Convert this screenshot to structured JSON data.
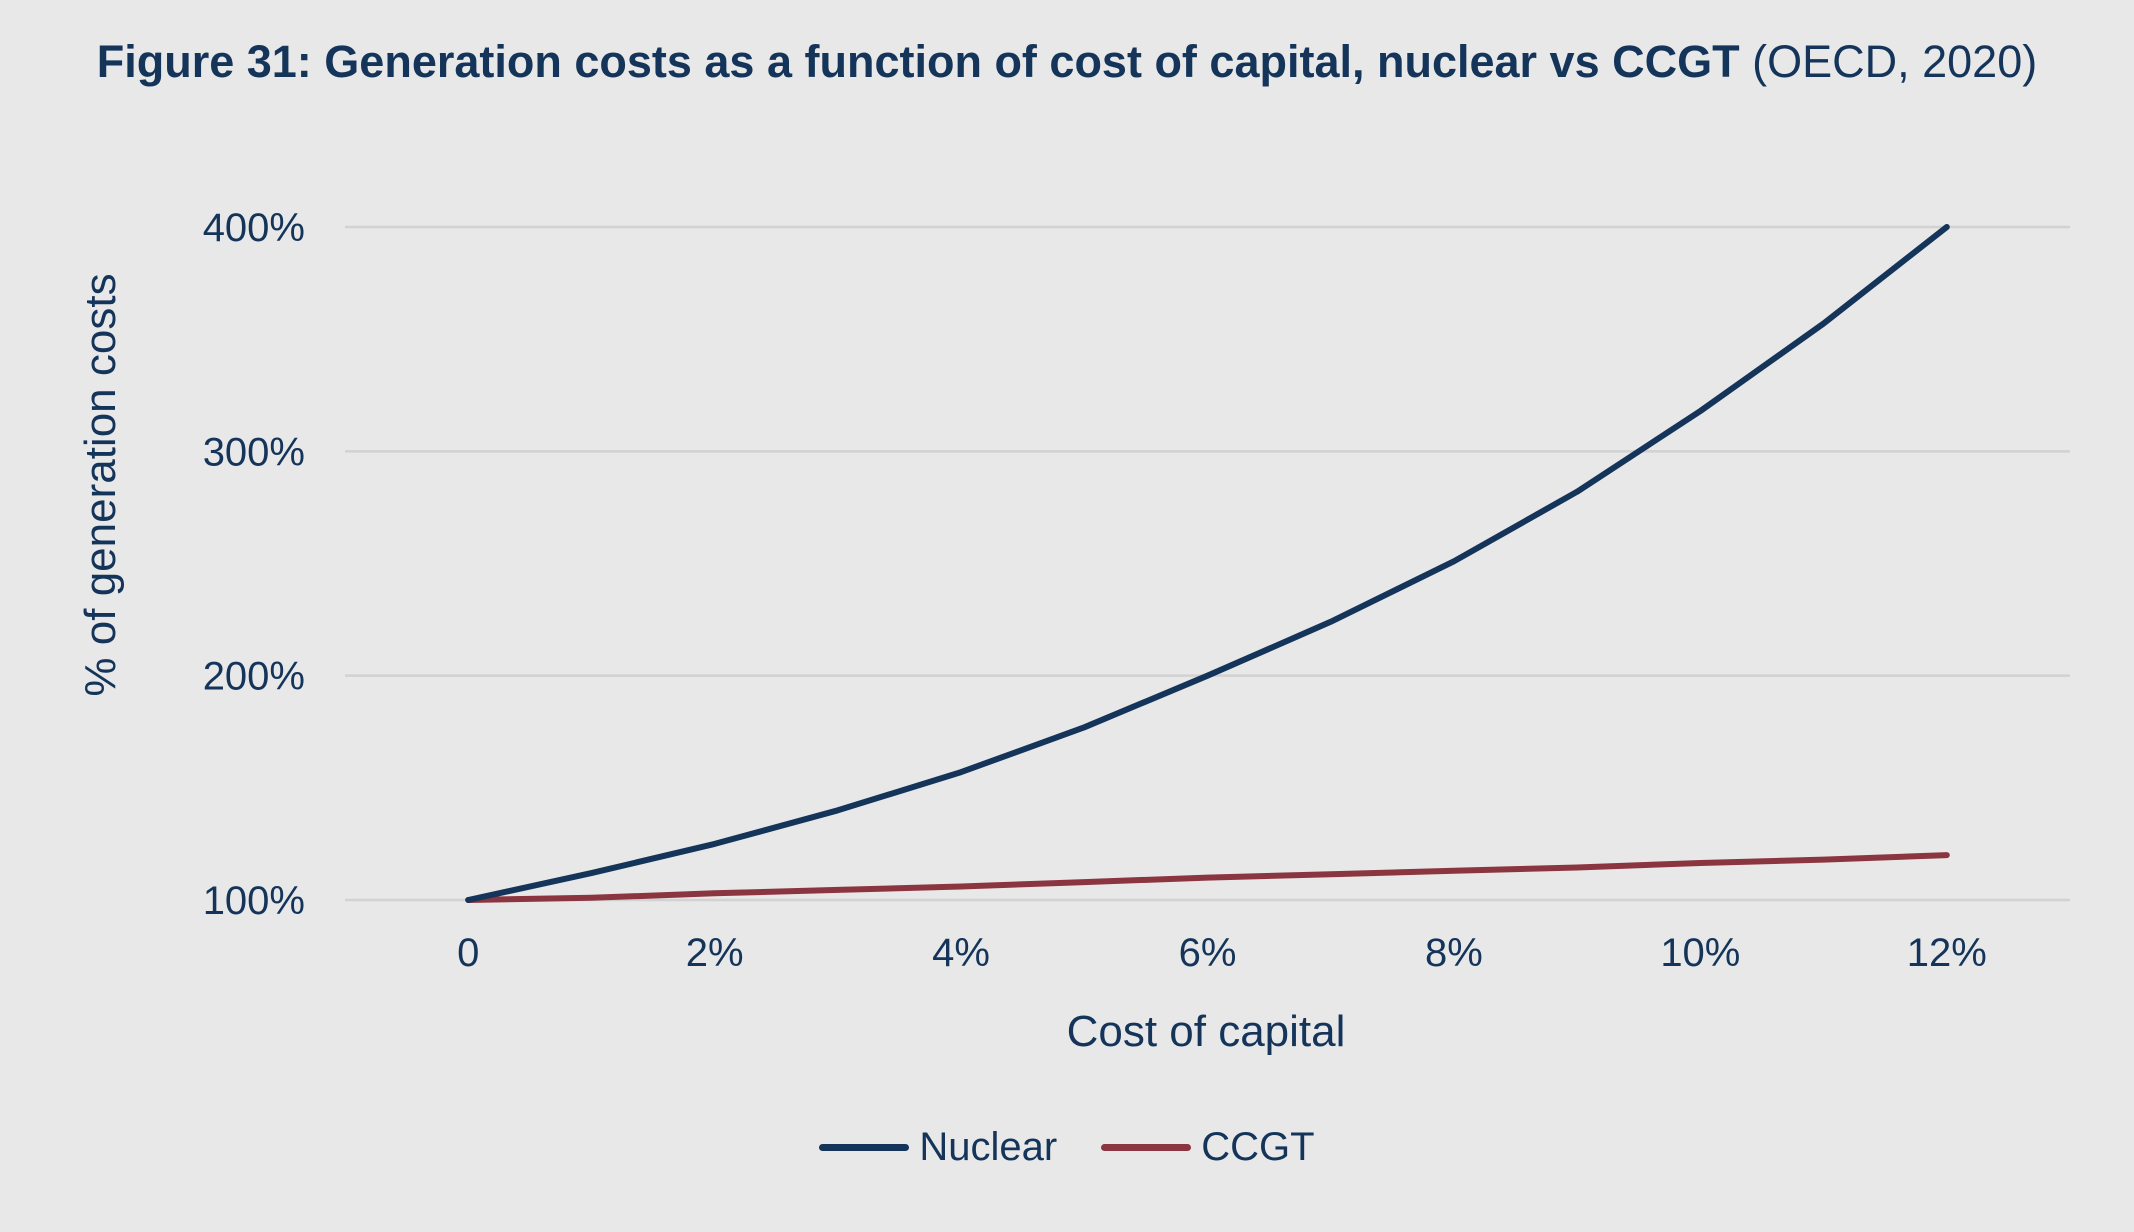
{
  "title": {
    "bold_part": "Figure 31: Generation costs as a function of cost of capital, nuclear vs CCGT",
    "normal_part": "(OECD, 2020)"
  },
  "colors": {
    "background": "#e8e8e8",
    "text": "#14345a",
    "gridline": "#d2d2d2",
    "nuclear": "#14345a",
    "ccgt": "#8b3540"
  },
  "chart_data": {
    "type": "line",
    "title": "Figure 31: Generation costs as a function of cost of capital, nuclear vs CCGT (OECD, 2020)",
    "xlabel": "Cost of capital",
    "ylabel": "% of generation costs",
    "x": [
      0,
      1,
      2,
      3,
      4,
      5,
      6,
      7,
      8,
      9,
      10,
      11,
      12
    ],
    "x_tick_labels": [
      {
        "value": 0,
        "label": "0"
      },
      {
        "value": 2,
        "label": "2%"
      },
      {
        "value": 4,
        "label": "4%"
      },
      {
        "value": 6,
        "label": "6%"
      },
      {
        "value": 8,
        "label": "8%"
      },
      {
        "value": 10,
        "label": "10%"
      },
      {
        "value": 12,
        "label": "12%"
      }
    ],
    "y_tick_labels": [
      {
        "value": 100,
        "label": "100%"
      },
      {
        "value": 200,
        "label": "200%"
      },
      {
        "value": 300,
        "label": "300%"
      },
      {
        "value": 400,
        "label": "400%"
      }
    ],
    "xlim": [
      -1,
      13
    ],
    "ylim": [
      100,
      400
    ],
    "series": [
      {
        "name": "Nuclear",
        "values": [
          100,
          112,
          125,
          140,
          157,
          177,
          200,
          224,
          251,
          282,
          318,
          357,
          400
        ]
      },
      {
        "name": "CCGT",
        "values": [
          100,
          101,
          103,
          104.5,
          106,
          108,
          110,
          111.5,
          113,
          114.5,
          116.5,
          118,
          120
        ]
      }
    ],
    "grid": "horizontal",
    "legend": "bottom-center"
  }
}
